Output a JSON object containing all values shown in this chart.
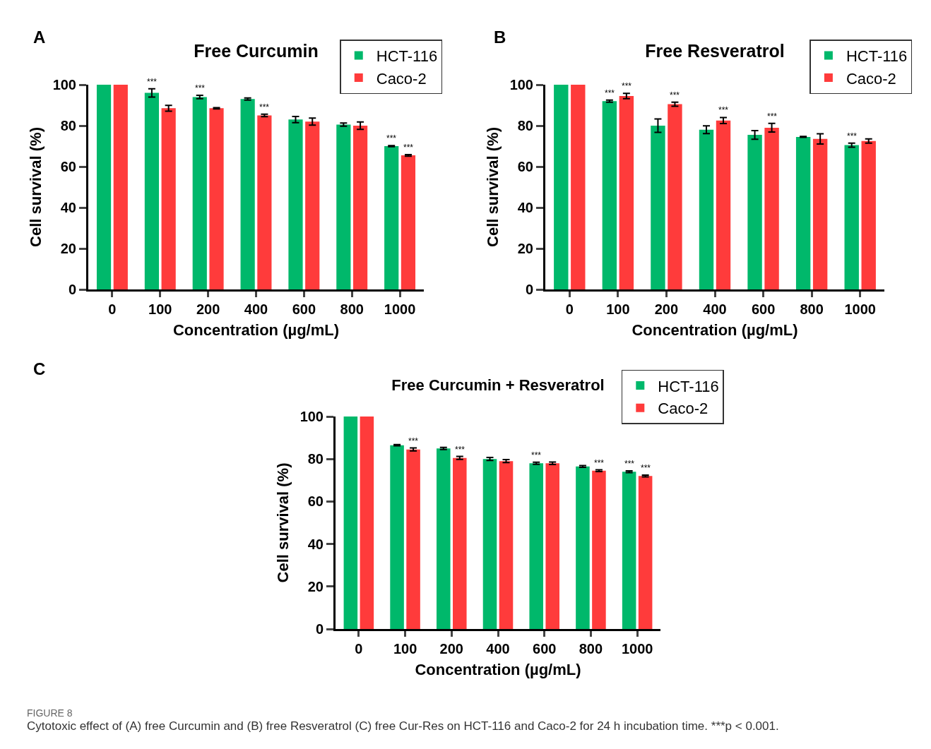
{
  "chart_data": [
    {
      "type": "bar",
      "title": "Free Curcumin",
      "xlabel": "Concentration (µg/mL)",
      "ylabel": "Cell survival (%)",
      "categories": [
        "0",
        "100",
        "200",
        "400",
        "600",
        "800",
        "1000"
      ],
      "ylim": [
        0,
        100
      ],
      "yticks": [
        0,
        20,
        40,
        60,
        80,
        100
      ],
      "legend": "top right",
      "grid": false,
      "series": [
        {
          "name": "HCT-116",
          "color": "#00b86b",
          "values": [
            100,
            96,
            94,
            93,
            83,
            80.5,
            70
          ],
          "errors": [
            null,
            2,
            0.8,
            0.5,
            1.5,
            0.8,
            0.3
          ]
        },
        {
          "name": "Caco-2",
          "color": "#ff3b3b",
          "values": [
            100,
            88.5,
            88.5,
            85,
            82,
            80,
            65.5
          ],
          "errors": [
            null,
            1.4,
            0.3,
            0.6,
            1.7,
            1.8,
            0.4
          ]
        }
      ],
      "annotations": [
        "A",
        {
          "text": "***",
          "x": "100",
          "y": 96
        },
        {
          "text": "***",
          "x": "200",
          "y": 94
        },
        {
          "text": "***",
          "x": "400",
          "y": 85
        },
        {
          "text": "***",
          "x": "1000",
          "y": 70
        },
        {
          "text": "***",
          "x": "1000",
          "y": 65.5
        }
      ]
    },
    {
      "type": "bar",
      "title": "Free Resveratrol",
      "xlabel": "Concentration (µg/mL)",
      "ylabel": "Cell survival (%)",
      "categories": [
        "0",
        "100",
        "200",
        "400",
        "600",
        "800",
        "1000"
      ],
      "ylim": [
        0,
        100
      ],
      "yticks": [
        0,
        20,
        40,
        60,
        80,
        100
      ],
      "legend": "top right",
      "grid": false,
      "series": [
        {
          "name": "HCT-116",
          "color": "#00b86b",
          "values": [
            100,
            92,
            80,
            78,
            75.5,
            74.5,
            70.5
          ],
          "errors": [
            null,
            0.5,
            3.3,
            1.9,
            2.1,
            0.2,
            1
          ]
        },
        {
          "name": "Caco-2",
          "color": "#ff3b3b",
          "values": [
            100,
            94.5,
            90.5,
            82.5,
            79,
            73.5,
            72.5
          ],
          "errors": [
            null,
            1.3,
            1,
            1.5,
            2.1,
            2.5,
            1
          ]
        }
      ],
      "annotations": [
        "B",
        {
          "text": "***",
          "x": "100",
          "y": 92
        },
        {
          "text": "***",
          "x": "100",
          "y": 94.5
        },
        {
          "text": "***",
          "x": "200",
          "y": 90.5
        },
        {
          "text": "***",
          "x": "400",
          "y": 82.5
        },
        {
          "text": "***",
          "x": "600",
          "y": 79
        },
        {
          "text": "***",
          "x": "1000",
          "y": 70.5
        }
      ]
    },
    {
      "type": "bar",
      "title": "Free Curcumin + Resveratrol",
      "xlabel": "Concentration (µg/mL)",
      "ylabel": "Cell survival (%)",
      "categories": [
        "0",
        "100",
        "200",
        "400",
        "600",
        "800",
        "1000"
      ],
      "ylim": [
        0,
        100
      ],
      "yticks": [
        0,
        20,
        40,
        60,
        80,
        100
      ],
      "legend": "top right",
      "grid": false,
      "series": [
        {
          "name": "HCT-116",
          "color": "#00b86b",
          "values": [
            100,
            86.5,
            85,
            80,
            78,
            76.5,
            74
          ],
          "errors": [
            null,
            0.3,
            0.5,
            0.7,
            0.5,
            0.4,
            0.4
          ]
        },
        {
          "name": "Caco-2",
          "color": "#ff3b3b",
          "values": [
            100,
            84.5,
            80.5,
            79,
            78,
            74.5,
            72
          ],
          "errors": [
            null,
            0.7,
            0.7,
            0.7,
            0.6,
            0.4,
            0.4
          ]
        }
      ],
      "annotations": [
        "C",
        {
          "text": "***",
          "x": "100",
          "y": 84.5
        },
        {
          "text": "***",
          "x": "200",
          "y": 80.5
        },
        {
          "text": "***",
          "x": "600",
          "y": 78
        },
        {
          "text": "***",
          "x": "800",
          "y": 74.5
        },
        {
          "text": "***",
          "x": "1000",
          "y": 74
        },
        {
          "text": "***",
          "x": "1000",
          "y": 72
        },
        "FIGURE 8",
        "Cytotoxic effect of (A) free Curcumin and (B) free Resveratrol (C) free Cur-Res on HCT-116 and Caco-2 for 24 h incubation time. ***p < 0.001."
      ]
    }
  ]
}
